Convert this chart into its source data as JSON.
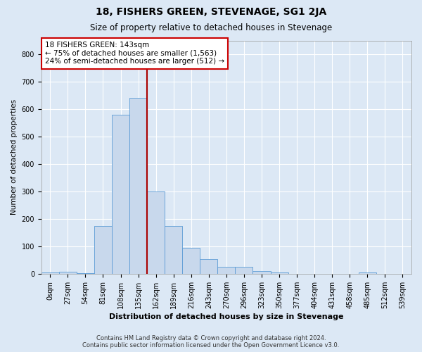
{
  "title": "18, FISHERS GREEN, STEVENAGE, SG1 2JA",
  "subtitle": "Size of property relative to detached houses in Stevenage",
  "xlabel": "Distribution of detached houses by size in Stevenage",
  "ylabel": "Number of detached properties",
  "bin_labels": [
    "0sqm",
    "27sqm",
    "54sqm",
    "81sqm",
    "108sqm",
    "135sqm",
    "162sqm",
    "189sqm",
    "216sqm",
    "243sqm",
    "270sqm",
    "296sqm",
    "323sqm",
    "350sqm",
    "377sqm",
    "404sqm",
    "431sqm",
    "458sqm",
    "485sqm",
    "512sqm",
    "539sqm"
  ],
  "counts": [
    5,
    8,
    2,
    175,
    580,
    640,
    300,
    175,
    95,
    55,
    25,
    25,
    10,
    5,
    0,
    0,
    0,
    0,
    5,
    0,
    0
  ],
  "bar_color": "#c8d8ec",
  "bar_edge_color": "#5b9bd5",
  "vline_x": 5.5,
  "vline_color": "#aa0000",
  "ylim": [
    0,
    850
  ],
  "yticks": [
    0,
    100,
    200,
    300,
    400,
    500,
    600,
    700,
    800
  ],
  "annotation_text": "18 FISHERS GREEN: 143sqm\n← 75% of detached houses are smaller (1,563)\n24% of semi-detached houses are larger (512) →",
  "annotation_box_color": "#ffffff",
  "annotation_box_edge": "#cc0000",
  "footer_line1": "Contains HM Land Registry data © Crown copyright and database right 2024.",
  "footer_line2": "Contains public sector information licensed under the Open Government Licence v3.0.",
  "background_color": "#dce8f5",
  "plot_bg_color": "#dce8f5",
  "grid_color": "#ffffff",
  "title_fontsize": 10,
  "subtitle_fontsize": 8.5,
  "xlabel_fontsize": 8,
  "ylabel_fontsize": 7.5,
  "tick_fontsize": 7,
  "annot_fontsize": 7.5,
  "footer_fontsize": 6
}
